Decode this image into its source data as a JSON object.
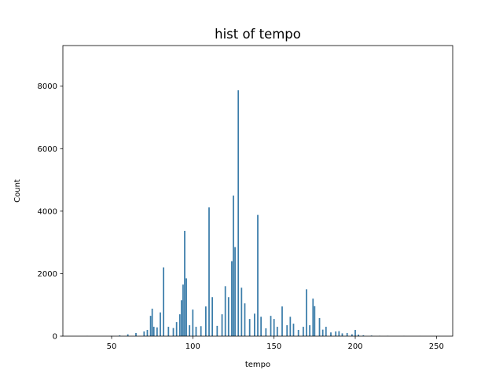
{
  "chart_data": {
    "type": "bar",
    "subtype": "histogram",
    "title": "hist of tempo",
    "xlabel": "tempo",
    "ylabel": "Count",
    "xlim": [
      20,
      260
    ],
    "ylim": [
      0,
      9300
    ],
    "xticks": [
      50,
      100,
      150,
      200,
      250
    ],
    "yticks": [
      0,
      2000,
      4000,
      6000,
      8000
    ],
    "grid": false,
    "legend": "none",
    "bar_color": "#3b7daa",
    "series": [
      {
        "x": [
          35,
          50,
          55,
          60,
          65,
          70,
          72,
          74,
          75,
          76,
          78,
          80,
          82,
          85,
          88,
          90,
          92,
          93,
          94,
          95,
          96,
          98,
          100,
          102,
          105,
          108,
          110,
          112,
          115,
          118,
          120,
          122,
          124,
          125,
          126,
          128,
          130,
          132,
          135,
          138,
          140,
          142,
          145,
          148,
          150,
          152,
          155,
          158,
          160,
          162,
          165,
          168,
          170,
          172,
          174,
          175,
          178,
          180,
          182,
          185,
          188,
          190,
          192,
          195,
          198,
          200,
          202,
          205,
          210,
          215,
          220,
          230,
          240,
          250
        ],
        "values": [
          5,
          10,
          25,
          60,
          100,
          150,
          200,
          650,
          880,
          300,
          280,
          760,
          2200,
          300,
          260,
          450,
          700,
          1150,
          1650,
          3370,
          1850,
          350,
          850,
          300,
          320,
          950,
          4120,
          1250,
          330,
          700,
          1600,
          1250,
          2400,
          4500,
          2850,
          7870,
          1550,
          1050,
          550,
          720,
          3880,
          620,
          250,
          650,
          550,
          300,
          950,
          350,
          620,
          400,
          200,
          300,
          1500,
          350,
          1200,
          960,
          580,
          210,
          300,
          120,
          150,
          160,
          90,
          100,
          60,
          200,
          50,
          30,
          20,
          10,
          10,
          5,
          3,
          3
        ]
      }
    ]
  }
}
